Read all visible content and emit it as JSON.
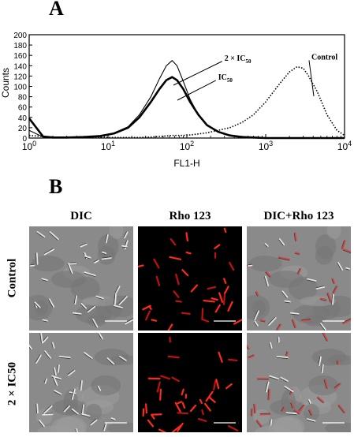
{
  "panel_a": {
    "letter": "A"
  },
  "panel_b": {
    "letter": "B",
    "columns": [
      "DIC",
      "Rho 123",
      "DIC+Rho 123"
    ],
    "rows": [
      "Control",
      "2 × IC50"
    ]
  },
  "chart_data": {
    "type": "line",
    "xlabel": "FL1-H",
    "ylabel": "Counts",
    "xscale": "log",
    "xlim": [
      1,
      10000
    ],
    "ylim": [
      0,
      200
    ],
    "x_ticks": [
      "10^0",
      "10^1",
      "10^2",
      "10^3",
      "10^4"
    ],
    "y_ticks": [
      0,
      20,
      40,
      60,
      80,
      100,
      120,
      140,
      160,
      180,
      200
    ],
    "x": [
      1,
      1.5,
      2,
      3,
      5,
      8,
      12,
      18,
      25,
      35,
      45,
      55,
      65,
      75,
      90,
      110,
      140,
      180,
      250,
      350,
      500,
      700,
      1000,
      1500,
      2000,
      2500,
      3000,
      3500,
      4500,
      6000,
      8000,
      10000
    ],
    "series": [
      {
        "name": "2 × IC50",
        "style": "solid-thin",
        "values": [
          15,
          2,
          1,
          1,
          2,
          4,
          10,
          22,
          45,
          80,
          115,
          140,
          150,
          140,
          110,
          75,
          45,
          25,
          12,
          5,
          2,
          1,
          0,
          0,
          0,
          0,
          0,
          0,
          0,
          0,
          0,
          0
        ]
      },
      {
        "name": "IC50",
        "style": "solid-thick",
        "values": [
          38,
          3,
          1,
          1,
          2,
          4,
          9,
          20,
          40,
          70,
          95,
          112,
          118,
          112,
          95,
          70,
          45,
          25,
          12,
          5,
          2,
          1,
          0,
          0,
          0,
          0,
          0,
          0,
          0,
          0,
          0,
          0
        ]
      },
      {
        "name": "Control",
        "style": "dotted",
        "values": [
          5,
          3,
          2,
          1,
          1,
          1,
          1,
          1,
          1,
          2,
          3,
          4,
          5,
          5,
          5,
          6,
          8,
          10,
          15,
          20,
          30,
          45,
          70,
          105,
          128,
          138,
          135,
          120,
          90,
          45,
          15,
          5
        ]
      }
    ],
    "annotations": [
      {
        "text": "2 × IC50",
        "x": 300,
        "y": 150
      },
      {
        "text": "IC50",
        "x": 250,
        "y": 113
      },
      {
        "text": "Control",
        "x": 3800,
        "y": 152
      }
    ]
  }
}
